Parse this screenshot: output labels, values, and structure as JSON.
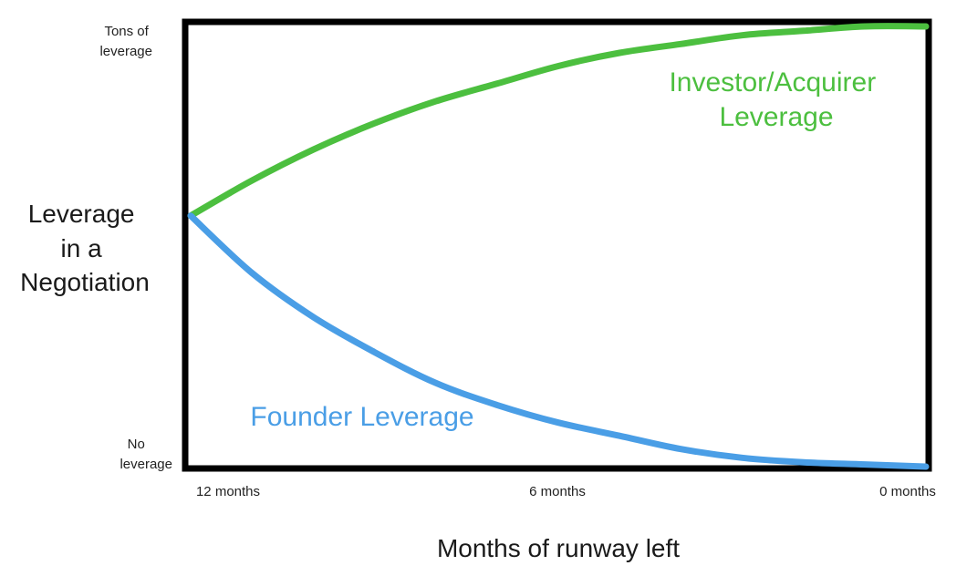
{
  "chart_data": {
    "type": "line",
    "title": "",
    "xlabel": "Months of runway left",
    "ylabel_lines": [
      "Leverage",
      "in a",
      "Negotiation"
    ],
    "x_ticks": [
      "12 months",
      "6 months",
      "0 months"
    ],
    "x": [
      12,
      11,
      10,
      9,
      8,
      7,
      6,
      5,
      4,
      3,
      2,
      1,
      0
    ],
    "xlim": [
      12,
      0
    ],
    "y_ticks": [
      {
        "lines": [
          "Tons of",
          "leverage"
        ],
        "value": 1
      },
      {
        "lines": [
          "No",
          "leverage"
        ],
        "value": 0
      }
    ],
    "ylim": [
      0,
      1
    ],
    "grid": false,
    "series": [
      {
        "name": "Investor/Acquirer Leverage",
        "label_lines": [
          "Investor/Acquirer",
          "Leverage"
        ],
        "color": "#4cbf3f",
        "values": [
          0.57,
          0.65,
          0.72,
          0.78,
          0.83,
          0.87,
          0.91,
          0.94,
          0.96,
          0.98,
          0.99,
          1.0,
          1.0
        ]
      },
      {
        "name": "Founder Leverage",
        "label_lines": [
          "Founder Leverage"
        ],
        "color": "#4a9ee6",
        "values": [
          0.57,
          0.44,
          0.34,
          0.26,
          0.19,
          0.14,
          0.1,
          0.07,
          0.04,
          0.02,
          0.01,
          0.005,
          0.0
        ]
      }
    ]
  }
}
